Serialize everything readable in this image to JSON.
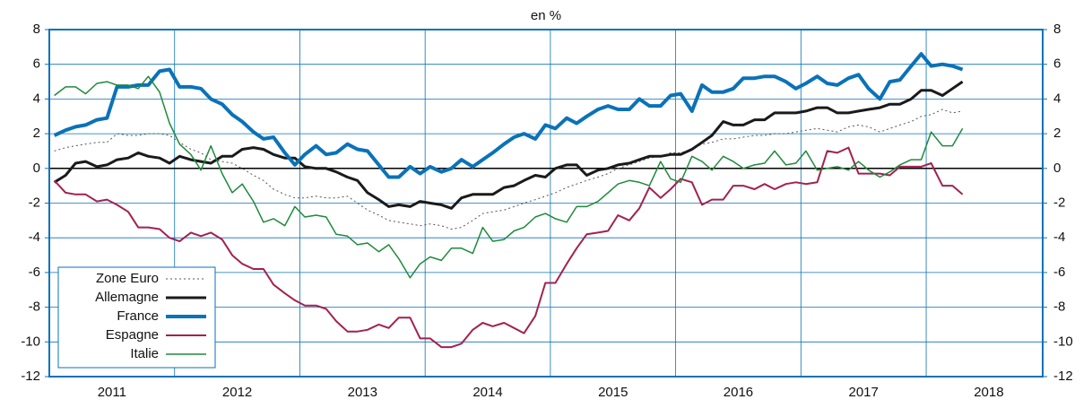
{
  "chart_data": {
    "type": "line",
    "subtitle": "en %",
    "x": [
      2011.04,
      2011.13,
      2011.21,
      2011.29,
      2011.38,
      2011.46,
      2011.54,
      2011.63,
      2011.71,
      2011.79,
      2011.88,
      2011.96,
      2012.04,
      2012.13,
      2012.21,
      2012.29,
      2012.38,
      2012.46,
      2012.54,
      2012.63,
      2012.71,
      2012.79,
      2012.88,
      2012.96,
      2013.04,
      2013.13,
      2013.21,
      2013.29,
      2013.38,
      2013.46,
      2013.54,
      2013.63,
      2013.71,
      2013.79,
      2013.88,
      2013.96,
      2014.04,
      2014.13,
      2014.21,
      2014.29,
      2014.38,
      2014.46,
      2014.54,
      2014.63,
      2014.71,
      2014.79,
      2014.88,
      2014.96,
      2015.04,
      2015.13,
      2015.21,
      2015.29,
      2015.38,
      2015.46,
      2015.54,
      2015.63,
      2015.71,
      2015.79,
      2015.88,
      2015.96,
      2016.04,
      2016.13,
      2016.21,
      2016.29,
      2016.38,
      2016.46,
      2016.54,
      2016.63,
      2016.71,
      2016.79,
      2016.88,
      2016.96,
      2017.04,
      2017.13,
      2017.21,
      2017.29,
      2017.38,
      2017.46,
      2017.54,
      2017.63,
      2017.71,
      2017.79,
      2017.88,
      2017.96,
      2018.04,
      2018.13,
      2018.21,
      2018.29
    ],
    "series": [
      {
        "name": "Zone Euro",
        "color": "#555555",
        "width": 1,
        "dash": "2 3",
        "values": [
          1.0,
          1.2,
          1.3,
          1.4,
          1.5,
          1.5,
          2.0,
          1.9,
          1.9,
          2.0,
          2.0,
          1.9,
          1.5,
          1.1,
          0.9,
          0.5,
          0.4,
          0.3,
          0.0,
          -0.4,
          -0.7,
          -1.2,
          -1.5,
          -1.7,
          -1.7,
          -1.6,
          -1.7,
          -1.7,
          -1.6,
          -2.0,
          -2.4,
          -2.7,
          -3.0,
          -3.1,
          -3.2,
          -3.3,
          -3.2,
          -3.3,
          -3.5,
          -3.4,
          -3.0,
          -2.6,
          -2.5,
          -2.4,
          -2.2,
          -2.0,
          -1.8,
          -1.6,
          -1.4,
          -1.1,
          -0.9,
          -0.7,
          -0.5,
          -0.3,
          0.0,
          0.2,
          0.4,
          0.6,
          0.7,
          0.9,
          0.9,
          1.1,
          1.4,
          1.5,
          1.7,
          1.7,
          1.8,
          1.9,
          1.9,
          2.0,
          2.0,
          2.1,
          2.2,
          2.3,
          2.2,
          2.1,
          2.4,
          2.5,
          2.4,
          2.1,
          2.3,
          2.5,
          2.7,
          3.0,
          3.1,
          3.4,
          3.2,
          3.3
        ]
      },
      {
        "name": "Allemagne",
        "color": "#1a1a1a",
        "width": 3,
        "values": [
          -0.8,
          -0.4,
          0.3,
          0.4,
          0.1,
          0.2,
          0.5,
          0.6,
          0.9,
          0.7,
          0.6,
          0.3,
          0.7,
          0.5,
          0.4,
          0.3,
          0.7,
          0.7,
          1.1,
          1.2,
          1.1,
          0.8,
          0.6,
          0.6,
          0.1,
          0.0,
          0.0,
          -0.2,
          -0.5,
          -0.7,
          -1.4,
          -1.8,
          -2.2,
          -2.1,
          -2.2,
          -1.9,
          -2.0,
          -2.1,
          -2.3,
          -1.7,
          -1.5,
          -1.5,
          -1.5,
          -1.1,
          -1.0,
          -0.7,
          -0.4,
          -0.5,
          0.0,
          0.2,
          0.2,
          -0.4,
          -0.1,
          0.0,
          0.2,
          0.3,
          0.5,
          0.7,
          0.7,
          0.8,
          0.8,
          1.1,
          1.5,
          1.9,
          2.7,
          2.5,
          2.5,
          2.8,
          2.8,
          3.2,
          3.2,
          3.2,
          3.3,
          3.5,
          3.5,
          3.2,
          3.2,
          3.3,
          3.4,
          3.5,
          3.7,
          3.7,
          4.0,
          4.5,
          4.5,
          4.2,
          4.6,
          5.0
        ]
      },
      {
        "name": "France",
        "color": "#0a72b8",
        "width": 4,
        "values": [
          1.9,
          2.2,
          2.4,
          2.5,
          2.8,
          2.9,
          4.7,
          4.7,
          4.8,
          4.8,
          5.6,
          5.7,
          4.7,
          4.7,
          4.6,
          4.0,
          3.7,
          3.1,
          2.7,
          2.1,
          1.7,
          1.8,
          0.9,
          0.2,
          0.8,
          1.3,
          0.8,
          0.9,
          1.4,
          1.1,
          1.0,
          0.2,
          -0.5,
          -0.5,
          0.1,
          -0.3,
          0.1,
          -0.2,
          0.0,
          0.5,
          0.1,
          0.5,
          0.9,
          1.4,
          1.8,
          2.0,
          1.7,
          2.5,
          2.3,
          2.9,
          2.6,
          3.0,
          3.4,
          3.6,
          3.4,
          3.4,
          4.0,
          3.6,
          3.6,
          4.2,
          4.3,
          3.3,
          4.8,
          4.4,
          4.4,
          4.6,
          5.2,
          5.2,
          5.3,
          5.3,
          5.0,
          4.6,
          4.9,
          5.3,
          4.9,
          4.8,
          5.2,
          5.4,
          4.6,
          4.0,
          5.0,
          5.1,
          5.9,
          6.6,
          5.9,
          6.0,
          5.9,
          5.7
        ]
      },
      {
        "name": "Espagne",
        "color": "#a3214f",
        "width": 2,
        "values": [
          -0.7,
          -1.4,
          -1.5,
          -1.5,
          -1.9,
          -1.8,
          -2.1,
          -2.5,
          -3.4,
          -3.4,
          -3.5,
          -4.0,
          -4.2,
          -3.7,
          -3.9,
          -3.7,
          -4.1,
          -5.0,
          -5.5,
          -5.8,
          -5.8,
          -6.7,
          -7.2,
          -7.6,
          -7.9,
          -7.9,
          -8.1,
          -8.8,
          -9.4,
          -9.4,
          -9.3,
          -9.0,
          -9.2,
          -8.6,
          -8.6,
          -9.8,
          -9.8,
          -10.3,
          -10.3,
          -10.1,
          -9.3,
          -8.9,
          -9.1,
          -8.9,
          -9.2,
          -9.5,
          -8.5,
          -6.6,
          -6.6,
          -5.5,
          -4.6,
          -3.8,
          -3.7,
          -3.6,
          -2.7,
          -3.0,
          -2.3,
          -1.1,
          -1.7,
          -1.2,
          -0.6,
          -0.8,
          -2.1,
          -1.8,
          -1.8,
          -1.0,
          -1.0,
          -1.2,
          -0.9,
          -1.2,
          -0.9,
          -0.8,
          -0.9,
          -0.8,
          1.0,
          0.9,
          1.2,
          -0.3,
          -0.3,
          -0.3,
          -0.4,
          0.1,
          0.1,
          0.1,
          0.3,
          -1.0,
          -1.0,
          -1.5
        ]
      },
      {
        "name": "Italie",
        "color": "#1e8a3c",
        "width": 1.5,
        "values": [
          4.2,
          4.7,
          4.7,
          4.3,
          4.9,
          5.0,
          4.8,
          4.8,
          4.6,
          5.3,
          4.4,
          2.6,
          1.4,
          0.8,
          -0.1,
          1.3,
          -0.3,
          -1.4,
          -0.9,
          -1.9,
          -3.1,
          -2.9,
          -3.3,
          -2.2,
          -2.8,
          -2.7,
          -2.8,
          -3.8,
          -3.9,
          -4.4,
          -4.3,
          -4.8,
          -4.4,
          -5.2,
          -6.3,
          -5.5,
          -5.1,
          -5.3,
          -4.6,
          -4.6,
          -4.9,
          -3.4,
          -4.2,
          -4.1,
          -3.6,
          -3.4,
          -2.8,
          -2.6,
          -2.9,
          -3.1,
          -2.2,
          -2.2,
          -1.9,
          -1.4,
          -0.9,
          -0.7,
          -0.8,
          -1.0,
          0.4,
          -0.6,
          -0.8,
          0.7,
          0.4,
          -0.1,
          0.7,
          0.4,
          0.0,
          0.2,
          0.3,
          1.0,
          0.2,
          0.3,
          1.0,
          -0.1,
          0.0,
          0.1,
          -0.1,
          0.4,
          -0.1,
          -0.5,
          -0.2,
          0.2,
          0.5,
          0.5,
          2.1,
          1.3,
          1.3,
          2.3
        ]
      }
    ],
    "xlim": [
      2011,
      2018.93
    ],
    "xticks": [
      {
        "value": 2011.5,
        "label": "2011"
      },
      {
        "value": 2012.5,
        "label": "2012"
      },
      {
        "value": 2013.5,
        "label": "2013"
      },
      {
        "value": 2014.5,
        "label": "2014"
      },
      {
        "value": 2015.5,
        "label": "2015"
      },
      {
        "value": 2016.5,
        "label": "2016"
      },
      {
        "value": 2017.5,
        "label": "2017"
      },
      {
        "value": 2018.5,
        "label": "2018"
      }
    ],
    "xgrid": [
      2012,
      2013,
      2014,
      2015,
      2016,
      2017,
      2018
    ],
    "ylim": [
      -12,
      8
    ],
    "yticks": [
      -12,
      -10,
      -8,
      -6,
      -4,
      -2,
      0,
      2,
      4,
      6,
      8
    ],
    "grid": true,
    "grid_color": "#0a72b8",
    "zero_line": 0,
    "legend": "lower left"
  }
}
